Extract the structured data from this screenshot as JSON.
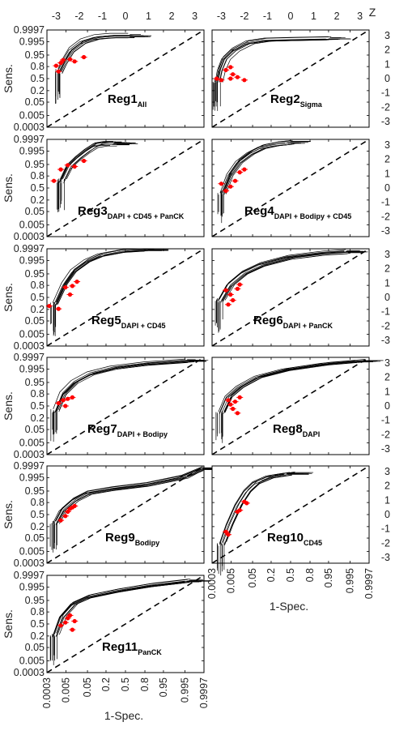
{
  "figure": {
    "ylabel": "Sens.",
    "xlabel": "1-Spec.",
    "zlabel": "Z",
    "prob_ticks": [
      "0.9997",
      "0.995",
      "0.95",
      "0.8",
      "0.5",
      "0.2",
      "0.05",
      "0.005",
      "0.0003"
    ],
    "z_ticks": [
      "-3",
      "-2",
      "-1",
      "0",
      "1",
      "2",
      "3"
    ],
    "z_ticks_right": [
      "3",
      "2",
      "1",
      "0",
      "-1",
      "-2",
      "-3"
    ],
    "curve_color": "#000000",
    "point_color": "#ff0000",
    "diagonal_style": "dashed"
  },
  "chart_data": [
    {
      "type": "line",
      "title": "Reg1",
      "subscript": "All",
      "axes": "normal-deviate (probit) ROC",
      "xlim_z": [
        -3.4,
        3.4
      ],
      "ylim_z": [
        -3.4,
        3.4
      ],
      "series": [
        {
          "name": "ROC curves",
          "x_z": [
            -2.8,
            -2.6,
            -2.3,
            -1.8,
            -1.2,
            -0.5,
            0.3
          ],
          "y_z": [
            0.5,
            1.2,
            2.0,
            2.6,
            2.9,
            3.0,
            3.0
          ]
        }
      ],
      "points_z": [
        [
          -3.0,
          0.9
        ],
        [
          -2.8,
          1.1
        ],
        [
          -2.7,
          1.3
        ],
        [
          -2.4,
          1.35
        ],
        [
          -2.2,
          1.2
        ],
        [
          -2.9,
          0.5
        ],
        [
          -1.8,
          1.5
        ]
      ]
    },
    {
      "type": "line",
      "title": "Reg2",
      "subscript": "Sigma",
      "axes": "normal-deviate (probit) ROC",
      "xlim_z": [
        -3.4,
        3.4
      ],
      "ylim_z": [
        -3.4,
        3.4
      ],
      "series": [
        {
          "name": "ROC curves",
          "x_z": [
            -3.1,
            -3.0,
            -2.8,
            -2.4,
            -1.8,
            -1.0,
            0.2,
            1.8
          ],
          "y_z": [
            -0.2,
            0.6,
            1.4,
            2.0,
            2.5,
            2.7,
            2.75,
            2.8
          ]
        }
      ],
      "points_z": [
        [
          -3.2,
          0.0
        ],
        [
          -3.0,
          -0.1
        ],
        [
          -2.8,
          0.6
        ],
        [
          -2.6,
          0.8
        ],
        [
          -2.5,
          0.3
        ],
        [
          -2.3,
          0.1
        ],
        [
          -2.0,
          -0.1
        ],
        [
          -2.6,
          0.0
        ]
      ]
    },
    {
      "type": "line",
      "title": "Reg3",
      "subscript": "DAPI + CD45 + PanCK",
      "axes": "normal-deviate (probit) ROC",
      "xlim_z": [
        -3.4,
        3.4
      ],
      "ylim_z": [
        -3.4,
        3.4
      ],
      "series": [
        {
          "name": "ROC curves",
          "x_z": [
            -2.7,
            -2.4,
            -2.0,
            -1.6,
            -1.2,
            -0.8,
            -0.4
          ],
          "y_z": [
            0.5,
            1.5,
            2.1,
            2.6,
            3.0,
            3.1,
            3.1
          ]
        }
      ],
      "points_z": [
        [
          -3.1,
          0.5
        ],
        [
          -2.8,
          1.3
        ],
        [
          -2.5,
          1.6
        ],
        [
          -2.2,
          1.5
        ],
        [
          -1.8,
          1.9
        ]
      ]
    },
    {
      "type": "line",
      "title": "Reg4",
      "subscript": "DAPI + Bodipy + CD45",
      "axes": "normal-deviate (probit) ROC",
      "xlim_z": [
        -3.4,
        3.4
      ],
      "ylim_z": [
        -3.4,
        3.4
      ],
      "series": [
        {
          "name": "ROC curves",
          "x_z": [
            -2.9,
            -2.6,
            -2.2,
            -1.7,
            -1.2,
            -0.6,
            0.0
          ],
          "y_z": [
            -0.3,
            1.0,
            1.9,
            2.5,
            2.9,
            3.1,
            3.2
          ]
        }
      ],
      "points_z": [
        [
          -3.0,
          0.3
        ],
        [
          -2.8,
          -0.2
        ],
        [
          -2.6,
          0.1
        ],
        [
          -2.4,
          0.5
        ],
        [
          -2.2,
          1.1
        ],
        [
          -2.0,
          1.3
        ]
      ]
    },
    {
      "type": "line",
      "title": "Reg5",
      "subscript": "DAPI + CD45",
      "axes": "normal-deviate (probit) ROC",
      "xlim_z": [
        -3.4,
        3.4
      ],
      "ylim_z": [
        -3.4,
        3.4
      ],
      "series": [
        {
          "name": "ROC curves",
          "x_z": [
            -3.0,
            -2.6,
            -2.2,
            -1.6,
            -1.0,
            0.0,
            1.0
          ],
          "y_z": [
            -0.5,
            0.9,
            1.8,
            2.5,
            2.9,
            3.2,
            3.3
          ]
        }
      ],
      "points_z": [
        [
          -3.3,
          -0.6
        ],
        [
          -2.9,
          -0.8
        ],
        [
          -2.6,
          0.7
        ],
        [
          -2.3,
          0.8
        ],
        [
          -2.1,
          1.1
        ],
        [
          -2.4,
          0.2
        ]
      ]
    },
    {
      "type": "line",
      "title": "Reg6",
      "subscript": "DAPI + PanCK",
      "axes": "normal-deviate (probit) ROC",
      "xlim_z": [
        -3.4,
        3.4
      ],
      "ylim_z": [
        -3.4,
        3.4
      ],
      "series": [
        {
          "name": "ROC curves",
          "x_z": [
            -3.0,
            -2.6,
            -2.0,
            -1.2,
            0.0,
            1.5,
            2.5
          ],
          "y_z": [
            -0.2,
            0.9,
            1.7,
            2.3,
            2.8,
            3.1,
            3.2
          ]
        }
      ],
      "points_z": [
        [
          -2.8,
          0.5
        ],
        [
          -2.6,
          0.2
        ],
        [
          -2.5,
          -0.2
        ],
        [
          -2.3,
          0.6
        ],
        [
          -2.2,
          0.9
        ],
        [
          -2.7,
          -0.5
        ]
      ]
    },
    {
      "type": "line",
      "title": "Reg7",
      "subscript": "DAPI + Bodipy",
      "axes": "normal-deviate (probit) ROC",
      "xlim_z": [
        -3.4,
        3.4
      ],
      "ylim_z": [
        -3.4,
        3.4
      ],
      "series": [
        {
          "name": "ROC curves",
          "x_z": [
            -3.0,
            -2.7,
            -2.2,
            -1.5,
            -0.5,
            1.0,
            2.8
          ],
          "y_z": [
            -0.3,
            0.9,
            1.7,
            2.3,
            2.7,
            3.0,
            3.2
          ]
        }
      ],
      "points_z": [
        [
          -2.9,
          0.2
        ],
        [
          -2.7,
          0.4
        ],
        [
          -2.5,
          0.5
        ],
        [
          -2.3,
          0.6
        ],
        [
          -2.6,
          0.0
        ]
      ]
    },
    {
      "type": "line",
      "title": "Reg8",
      "subscript": "DAPI",
      "axes": "normal-deviate (probit) ROC",
      "xlim_z": [
        -3.4,
        3.4
      ],
      "ylim_z": [
        -3.4,
        3.4
      ],
      "series": [
        {
          "name": "ROC curves",
          "x_z": [
            -3.0,
            -2.7,
            -2.2,
            -1.4,
            -0.2,
            1.5,
            3.0
          ],
          "y_z": [
            -0.5,
            0.6,
            1.3,
            2.0,
            2.5,
            2.9,
            3.1
          ]
        }
      ],
      "points_z": [
        [
          -2.7,
          0.4
        ],
        [
          -2.5,
          -0.2
        ],
        [
          -2.4,
          0.3
        ],
        [
          -2.3,
          -0.5
        ],
        [
          -2.2,
          0.6
        ],
        [
          -2.6,
          0.1
        ]
      ]
    },
    {
      "type": "line",
      "title": "Reg9",
      "subscript": "Bodipy",
      "axes": "normal-deviate (probit) ROC",
      "xlim_z": [
        -3.4,
        3.4
      ],
      "ylim_z": [
        -3.4,
        3.4
      ],
      "series": [
        {
          "name": "ROC curves",
          "x_z": [
            -3.0,
            -2.7,
            -2.2,
            -1.6,
            -0.5,
            1.0,
            2.5,
            3.4
          ],
          "y_z": [
            -0.6,
            0.3,
            1.0,
            1.5,
            1.8,
            2.1,
            2.6,
            3.2
          ]
        }
      ],
      "points_z": [
        [
          -2.8,
          -0.4
        ],
        [
          -2.6,
          -0.1
        ],
        [
          -2.5,
          0.2
        ],
        [
          -2.4,
          0.4
        ],
        [
          -2.3,
          0.5
        ],
        [
          -2.2,
          0.6
        ]
      ]
    },
    {
      "type": "line",
      "title": "Reg10",
      "subscript": "CD45",
      "axes": "normal-deviate (probit) ROC",
      "xlim_z": [
        -3.4,
        3.4
      ],
      "ylim_z": [
        -3.4,
        3.4
      ],
      "series": [
        {
          "name": "ROC curves",
          "x_z": [
            -2.9,
            -2.6,
            -2.2,
            -1.8,
            -1.4,
            -0.8,
            0.0
          ],
          "y_z": [
            -2.0,
            -0.7,
            0.7,
            1.7,
            2.3,
            2.7,
            2.9
          ]
        }
      ],
      "points_z": [
        [
          -2.8,
          -1.2
        ],
        [
          -2.7,
          -1.4
        ],
        [
          -2.3,
          0.2
        ],
        [
          -2.0,
          0.9
        ],
        [
          -1.9,
          0.8
        ],
        [
          -2.2,
          0.3
        ]
      ]
    },
    {
      "type": "line",
      "title": "Reg11",
      "subscript": "PanCK",
      "axes": "normal-deviate (probit) ROC",
      "xlim_z": [
        -3.4,
        3.4
      ],
      "ylim_z": [
        -3.4,
        3.4
      ],
      "series": [
        {
          "name": "ROC curves",
          "x_z": [
            -3.0,
            -2.7,
            -2.2,
            -1.5,
            -0.3,
            1.2,
            2.8
          ],
          "y_z": [
            -0.8,
            0.5,
            1.4,
            1.9,
            2.3,
            2.7,
            3.0
          ]
        }
      ],
      "points_z": [
        [
          -2.8,
          -0.1
        ],
        [
          -2.6,
          0.1
        ],
        [
          -2.5,
          0.4
        ],
        [
          -2.4,
          0.6
        ],
        [
          -2.2,
          0.2
        ],
        [
          -2.3,
          -0.4
        ]
      ]
    }
  ]
}
